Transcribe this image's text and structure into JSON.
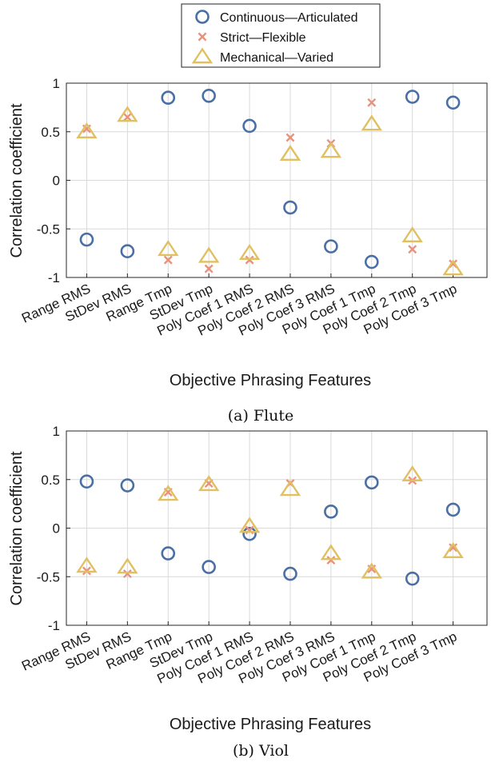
{
  "legend": {
    "placement": "top-center",
    "entries": [
      {
        "label": "Continuous—Articulated",
        "marker": "circle",
        "color": "#4a6fa5"
      },
      {
        "label": "Strict—Flexible",
        "marker": "x",
        "color": "#e8927c"
      },
      {
        "label": "Mechanical—Varied",
        "marker": "triangle",
        "color": "#e0c060"
      }
    ]
  },
  "chart_data": [
    {
      "type": "scatter",
      "caption": "(a) Flute",
      "xlabel": "Objective Phrasing Features",
      "ylabel": "Correlation coefficient",
      "ylim": [
        -1,
        1
      ],
      "yticks": [
        "-1",
        "-0.5",
        "0",
        "0.5",
        "1"
      ],
      "grid": true,
      "categories": [
        "Range RMS",
        "StDev RMS",
        "Range Tmp",
        "StDev Tmp",
        "Poly Coef 1 RMS",
        "Poly Coef 2 RMS",
        "Poly Coef 3 RMS",
        "Poly Coef 1 Tmp",
        "Poly Coef 2 Tmp",
        "Poly Coef 3 Tmp"
      ],
      "series": [
        {
          "name": "Continuous—Articulated",
          "values": [
            -0.61,
            -0.73,
            0.85,
            0.87,
            0.56,
            -0.28,
            -0.68,
            -0.84,
            0.86,
            0.8
          ]
        },
        {
          "name": "Strict—Flexible",
          "values": [
            0.53,
            0.65,
            -0.82,
            -0.91,
            -0.82,
            0.44,
            0.38,
            0.8,
            -0.71,
            -0.86
          ]
        },
        {
          "name": "Mechanical—Varied",
          "values": [
            0.5,
            0.67,
            -0.71,
            -0.78,
            -0.75,
            0.27,
            0.3,
            0.58,
            -0.57,
            -0.91
          ]
        }
      ]
    },
    {
      "type": "scatter",
      "caption": "(b) Viol",
      "xlabel": "Objective Phrasing Features",
      "ylabel": "Correlation coefficient",
      "ylim": [
        -1,
        1
      ],
      "yticks": [
        "-1",
        "-0.5",
        "0",
        "0.5",
        "1"
      ],
      "grid": true,
      "categories": [
        "Range RMS",
        "StDev RMS",
        "Range Tmp",
        "StDev Tmp",
        "Poly Coef 1 RMS",
        "Poly Coef 2 RMS",
        "Poly Coef 3 RMS",
        "Poly Coef 1 Tmp",
        "Poly Coef 2 Tmp",
        "Poly Coef 3 Tmp"
      ],
      "series": [
        {
          "name": "Continuous—Articulated",
          "values": [
            0.48,
            0.44,
            -0.26,
            -0.4,
            -0.06,
            -0.47,
            0.17,
            0.47,
            -0.52,
            0.19
          ]
        },
        {
          "name": "Strict—Flexible",
          "values": [
            -0.44,
            -0.47,
            0.37,
            0.46,
            -0.02,
            0.46,
            -0.33,
            -0.42,
            0.49,
            -0.2
          ]
        },
        {
          "name": "Mechanical—Varied",
          "values": [
            -0.39,
            -0.4,
            0.35,
            0.45,
            0.02,
            0.4,
            -0.26,
            -0.45,
            0.55,
            -0.24
          ]
        }
      ]
    }
  ]
}
